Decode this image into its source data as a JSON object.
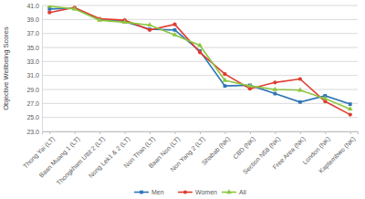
{
  "chart_data": {
    "type": "line",
    "y_label": "Objective Wellbeing Scores",
    "categories": [
      "Thong Yai (LT)",
      "Baan Muang 1 (LT)",
      "Thongkham Uttit 2 (LT)",
      "Nong Lek1 & 2 (LT)",
      "Non Than (LT)",
      "Baan Non (LT)",
      "Non Yang 2 (LT)",
      "Shabab (NK)",
      "CBD (NK)",
      "Section N58 (NK)",
      "Free Area (NK)",
      "London (NK)",
      "Kaptembwo (NK)"
    ],
    "series": [
      {
        "name": "Men",
        "color": "#2e75b6",
        "marker": "square",
        "values": [
          40.5,
          40.6,
          39.0,
          38.7,
          37.6,
          37.5,
          34.5,
          29.5,
          29.6,
          28.4,
          27.2,
          28.1,
          26.9
        ]
      },
      {
        "name": "Women",
        "color": "#e03c31",
        "marker": "circle",
        "values": [
          40.0,
          40.7,
          39.1,
          38.9,
          37.5,
          38.3,
          34.3,
          31.2,
          29.1,
          30.0,
          30.5,
          27.3,
          25.4
        ]
      },
      {
        "name": "All",
        "color": "#8cc63f",
        "marker": "triangle",
        "values": [
          40.9,
          40.5,
          38.9,
          38.6,
          38.2,
          36.8,
          35.3,
          30.3,
          29.5,
          29.0,
          28.9,
          27.7,
          26.2
        ]
      }
    ],
    "ylim": [
      23,
      41
    ],
    "yticks": [
      {
        "value": 23,
        "label": "23.0"
      },
      {
        "value": 25,
        "label": "25.0"
      },
      {
        "value": 27,
        "label": "27.0"
      },
      {
        "value": 29,
        "label": "29.0"
      },
      {
        "value": 31,
        "label": "31.0"
      },
      {
        "value": 33,
        "label": "33.0"
      },
      {
        "value": 35,
        "label": "35.0"
      },
      {
        "value": 37,
        "label": "37.0"
      },
      {
        "value": 39,
        "label": "39.0"
      },
      {
        "value": 41,
        "label": "41.0"
      }
    ],
    "grid": true,
    "legend": "bottom"
  }
}
